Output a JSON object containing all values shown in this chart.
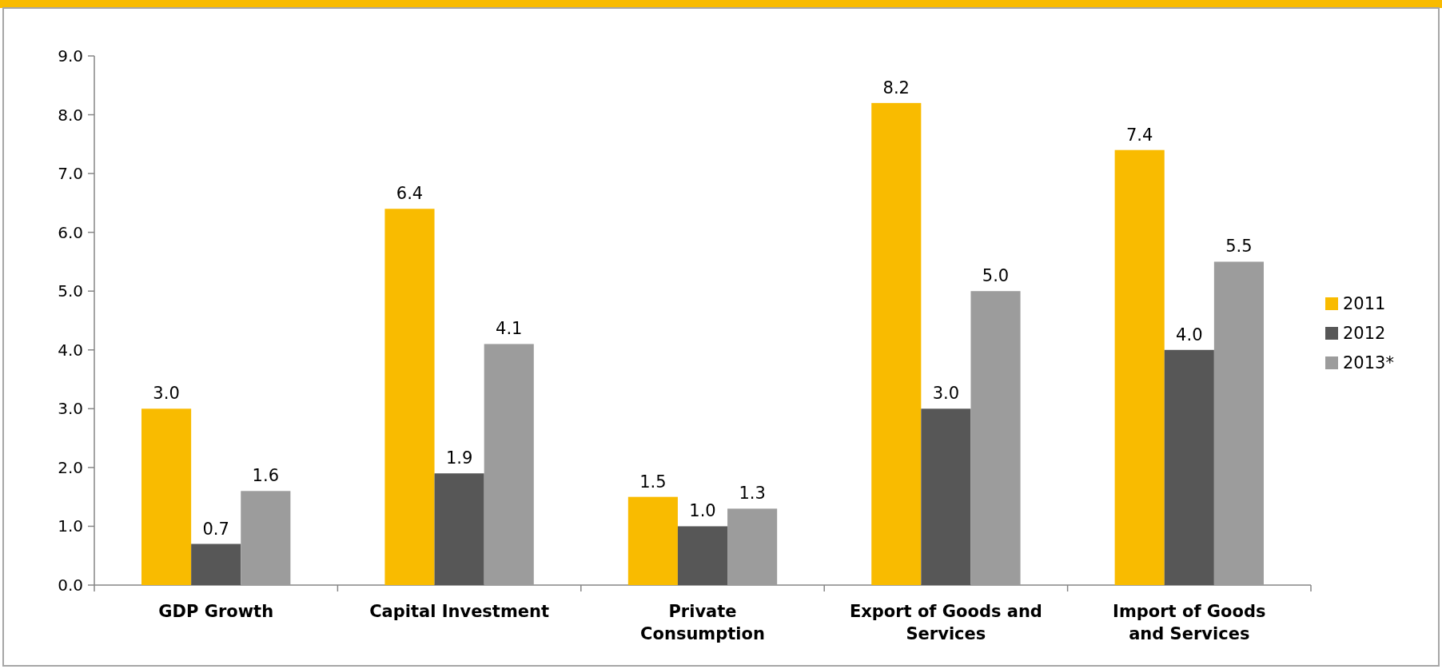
{
  "chart_data": {
    "type": "bar",
    "categories": [
      "GDP Growth",
      "Capital Investment",
      "Private\nConsumption",
      "Export of Goods and\nServices",
      "Import of Goods\nand Services"
    ],
    "series": [
      {
        "name": "2011",
        "color": "#f9bb00",
        "values": [
          3.0,
          6.4,
          1.5,
          8.2,
          7.4
        ],
        "value_labels": [
          "3.0",
          "6.4",
          "1.5",
          "8.2",
          "7.4"
        ]
      },
      {
        "name": "2012",
        "color": "#575757",
        "values": [
          0.7,
          1.9,
          1.0,
          3.0,
          4.0
        ],
        "value_labels": [
          "0.7",
          "1.9",
          "1.0",
          "3.0",
          "4.0"
        ]
      },
      {
        "name": "2013*",
        "color": "#9c9c9c",
        "values": [
          1.6,
          4.1,
          1.3,
          5.0,
          5.5
        ],
        "value_labels": [
          "1.6",
          "4.1",
          "1.3",
          "5.0",
          "5.5"
        ]
      }
    ],
    "ylim": [
      0,
      9
    ],
    "yticks": [
      {
        "value": 0,
        "label": "0.0"
      },
      {
        "value": 1,
        "label": "1.0"
      },
      {
        "value": 2,
        "label": "2.0"
      },
      {
        "value": 3,
        "label": "3.0"
      },
      {
        "value": 4,
        "label": "4.0"
      },
      {
        "value": 5,
        "label": "5.0"
      },
      {
        "value": 6,
        "label": "6.0"
      },
      {
        "value": 7,
        "label": "7.0"
      },
      {
        "value": 8,
        "label": "8.0"
      },
      {
        "value": 9,
        "label": "9.0"
      }
    ],
    "legend": "right",
    "grid": false
  }
}
